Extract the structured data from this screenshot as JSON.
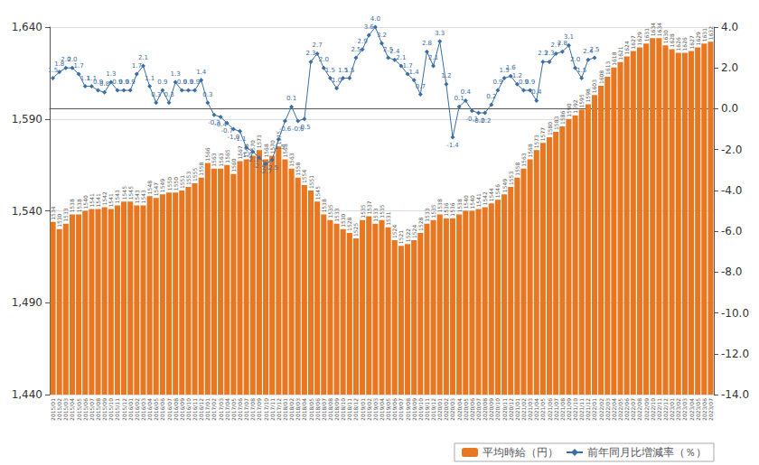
{
  "chart_data": {
    "type": "bar",
    "categories": [
      "2015/01",
      "2015/02",
      "2015/03",
      "2015/04",
      "2015/05",
      "2015/06",
      "2015/07",
      "2015/08",
      "2015/09",
      "2015/10",
      "2015/11",
      "2015/12",
      "2016/01",
      "2016/02",
      "2016/03",
      "2016/04",
      "2016/05",
      "2016/06",
      "2016/07",
      "2016/08",
      "2016/09",
      "2016/10",
      "2016/11",
      "2016/12",
      "2017/01",
      "2017/02",
      "2017/03",
      "2017/04",
      "2017/05",
      "2017/06",
      "2017/07",
      "2017/08",
      "2017/09",
      "2017/10",
      "2017/11",
      "2017/12",
      "2018/01",
      "2018/02",
      "2018/03",
      "2018/04",
      "2018/05",
      "2018/06",
      "2018/07",
      "2018/08",
      "2018/09",
      "2018/10",
      "2018/11",
      "2018/12",
      "2019/01",
      "2019/02",
      "2019/03",
      "2019/04",
      "2019/05",
      "2019/06",
      "2019/07",
      "2019/08",
      "2019/09",
      "2019/10",
      "2019/11",
      "2019/12",
      "2020/01",
      "2020/02",
      "2020/03",
      "2020/04",
      "2020/05",
      "2020/06",
      "2020/07",
      "2020/08",
      "2020/09",
      "2020/10",
      "2020/11",
      "2020/12",
      "2021/01",
      "2021/02",
      "2021/03",
      "2021/04",
      "2021/05",
      "2021/06",
      "2021/07",
      "2021/08",
      "2021/09",
      "2021/10",
      "2021/11",
      "2021/12",
      "2022/01",
      "2022/02",
      "2022/03",
      "2022/04",
      "2022/05",
      "2022/06",
      "2022/07",
      "2022/08",
      "2022/09",
      "2022/10",
      "2022/11",
      "2022/12",
      "2023/01",
      "2023/02",
      "2023/03",
      "2023/04",
      "2023/05",
      "2023/06",
      "2023/07"
    ],
    "series": [
      {
        "name": "平均時給（円）",
        "type": "bar",
        "color": "#E87722",
        "values": [
          1534,
          1530,
          1533,
          1538,
          1538,
          1540,
          1541,
          1541,
          1542,
          1541,
          1543,
          1545,
          1545,
          1543,
          1543,
          1548,
          1547,
          1549,
          1550,
          1550,
          1551,
          1553,
          1555,
          1558,
          1566,
          1563,
          1563,
          1565,
          1560,
          1567,
          1568,
          1570,
          1573,
          1568,
          1570,
          1575,
          1568,
          1563,
          1558,
          1554,
          1551,
          1545,
          1538,
          1535,
          1533,
          1530,
          1528,
          1525,
          1535,
          1537,
          1533,
          1535,
          1531,
          1524,
          1521,
          1522,
          1524,
          1528,
          1533,
          1535,
          1538,
          1536,
          1536,
          1538,
          1540,
          1540,
          1541,
          1542,
          1544,
          1546,
          1549,
          1553,
          1558,
          1563,
          1568,
          1573,
          1577,
          1580,
          1583,
          1586,
          1590,
          1592,
          1595,
          1598,
          1603,
          1608,
          1613,
          1618,
          1621,
          1624,
          1627,
          1629,
          1631,
          1634,
          1634,
          1630,
          1628,
          1626,
          1626,
          1627,
          1629,
          1631,
          1632
        ]
      },
      {
        "name": "前年同月比増減率（％）",
        "type": "line",
        "axis": "y2",
        "color": "#3A6EA5",
        "marker": "diamond",
        "values": [
          1.5,
          1.8,
          2.0,
          2.0,
          1.7,
          1.1,
          1.1,
          0.9,
          0.8,
          1.3,
          0.9,
          0.9,
          0.9,
          1.7,
          2.1,
          1.1,
          0.3,
          0.9,
          0.3,
          1.3,
          0.9,
          0.9,
          0.9,
          1.4,
          0.3,
          -0.3,
          -0.4,
          -0.7,
          -1.0,
          -1.1,
          -1.9,
          -2.1,
          -2.4,
          -2.7,
          -2.5,
          -1.5,
          -0.6,
          0.1,
          -0.6,
          -0.5,
          2.3,
          2.7,
          2.0,
          1.5,
          1.0,
          1.5,
          1.5,
          2.5,
          2.9,
          3.6,
          4.0,
          3.2,
          2.5,
          2.4,
          2.1,
          1.7,
          1.4,
          0.7,
          2.8,
          2.1,
          3.3,
          1.2,
          -1.4,
          0.1,
          0.4,
          -0.1,
          -0.2,
          -0.2,
          0.2,
          0.9,
          1.5,
          1.6,
          1.2,
          0.9,
          0.9,
          0.4,
          2.3,
          2.3,
          2.7,
          2.8,
          3.1,
          2.0,
          1.5,
          2.4,
          2.5,
          null,
          null,
          null,
          null,
          null,
          null,
          null,
          null,
          null,
          null,
          null,
          null,
          null,
          null,
          null,
          null,
          null,
          null
        ],
        "value_labels": [
          "1.5",
          "1.8",
          "2.0",
          "2.0",
          "1.7",
          "1.1",
          "1.1",
          "0.9",
          "0.8",
          "1.3",
          "0.9",
          "0.9",
          "0.9",
          "1.7",
          "2.1",
          "1.1",
          "0.3",
          "0.9",
          "0.3",
          "1.3",
          "0.9",
          "0.9",
          "0.9",
          "1.4",
          "0.3",
          "-0.3",
          "-0.4",
          "-0.7",
          "-1.0",
          "-1.1",
          "-1.9",
          "-2.1",
          "-2.4",
          "-2.7",
          "-2.5",
          "-1.5",
          "-0.6",
          "0.1",
          "-0.6",
          "-0.5",
          "2.3",
          "2.7",
          "2.0",
          "1.5",
          "1.0",
          "1.5",
          "1.5",
          "2.5",
          "2.9",
          "3.6",
          "4.0",
          "3.2",
          "2.5",
          "2.4",
          "2.1",
          "1.7",
          "1.4",
          "0.7",
          "2.8",
          "2.1",
          "3.3",
          "1.2",
          "-1.4",
          "0.1",
          "0.4",
          "-0.1",
          "-0.2",
          "-0.2",
          "0.2",
          "0.9",
          "1.5",
          "1.6",
          "1.2",
          "0.9",
          "0.9",
          "0.4",
          "2.3",
          "2.3",
          "2.7",
          "2.8",
          "3.1",
          "2.0",
          "1.5",
          "2.4",
          "2.5",
          null,
          null,
          null,
          null,
          null,
          null,
          null,
          null,
          null,
          null,
          null,
          null,
          null,
          null,
          null,
          null,
          null,
          null
        ]
      }
    ],
    "ylim": [
      1440,
      1640
    ],
    "yticks": [
      {
        "value": 1440,
        "label": "1,440"
      },
      {
        "value": 1490,
        "label": "1,490"
      },
      {
        "value": 1540,
        "label": "1,540"
      },
      {
        "value": 1590,
        "label": "1,590"
      },
      {
        "value": 1640,
        "label": "1,640"
      }
    ],
    "y2lim": [
      -14.0,
      4.0
    ],
    "y2ticks": [
      {
        "value": -14,
        "label": "-14.0"
      },
      {
        "value": -12,
        "label": "-12.0"
      },
      {
        "value": -10,
        "label": "-10.0"
      },
      {
        "value": -8,
        "label": "-8.0"
      },
      {
        "value": -6,
        "label": "-6.0"
      },
      {
        "value": -4,
        "label": "-4.0"
      },
      {
        "value": -2,
        "label": "-2.0"
      },
      {
        "value": 0,
        "label": "0.0"
      },
      {
        "value": 2,
        "label": "2.0"
      },
      {
        "value": 4,
        "label": "4.0"
      }
    ],
    "grid": true,
    "data_labels": true,
    "legend": "lower right"
  }
}
